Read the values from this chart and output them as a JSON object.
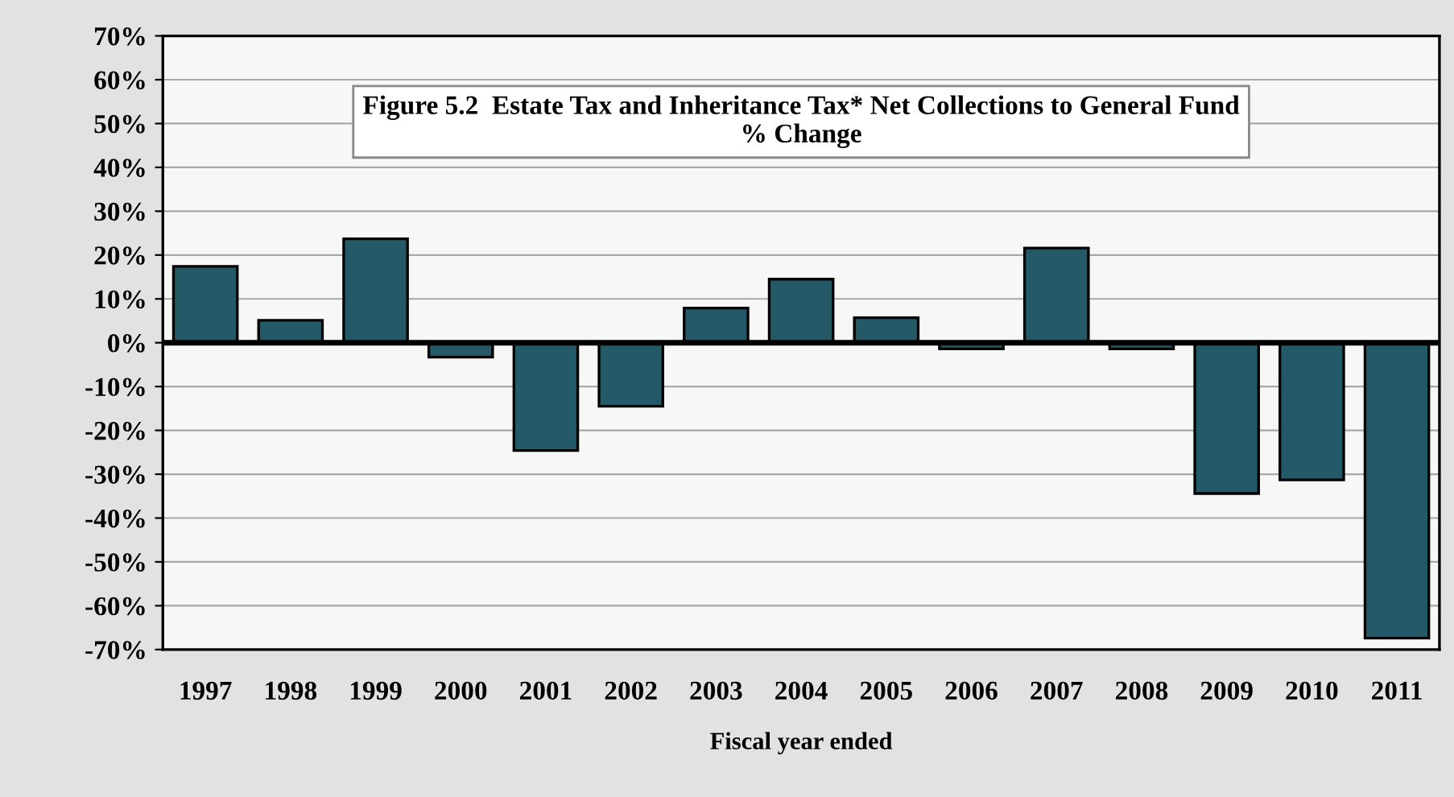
{
  "chart_data": {
    "type": "bar",
    "title": "Figure 5.2  Estate Tax and Inheritance Tax* Net Collections to General Fund\n% Change",
    "xlabel": "Fiscal year ended",
    "categories": [
      "1997",
      "1998",
      "1999",
      "2000",
      "2001",
      "2002",
      "2003",
      "2004",
      "2005",
      "2006",
      "2007",
      "2008",
      "2009",
      "2010",
      "2011"
    ],
    "values": [
      17.4,
      5.1,
      23.7,
      -3.3,
      -24.6,
      -14.5,
      7.9,
      14.5,
      5.7,
      -1.4,
      21.6,
      -1.4,
      -34.4,
      -31.3,
      -67.4
    ],
    "color": "#245a68",
    "ylim": [
      -70,
      70
    ],
    "yticks": [
      {
        "value": -70,
        "label": "-70%"
      },
      {
        "value": -60,
        "label": "-60%"
      },
      {
        "value": -50,
        "label": "-50%"
      },
      {
        "value": -40,
        "label": "-40%"
      },
      {
        "value": -30,
        "label": "-30%"
      },
      {
        "value": -20,
        "label": "-20%"
      },
      {
        "value": -10,
        "label": "-10%"
      },
      {
        "value": 0,
        "label": "0%"
      },
      {
        "value": 10,
        "label": "10%"
      },
      {
        "value": 20,
        "label": "20%"
      },
      {
        "value": 30,
        "label": "30%"
      },
      {
        "value": 40,
        "label": "40%"
      },
      {
        "value": 50,
        "label": "50%"
      },
      {
        "value": 60,
        "label": "60%"
      },
      {
        "value": 70,
        "label": "70%"
      }
    ],
    "grid": "y"
  }
}
